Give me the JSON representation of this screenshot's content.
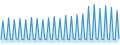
{
  "chart_data": {
    "type": "area",
    "values": [
      8,
      55,
      10,
      8,
      62,
      9,
      8,
      58,
      10,
      8,
      60,
      9,
      8,
      57,
      10,
      8,
      63,
      9,
      8,
      60,
      10,
      8,
      58,
      9,
      8,
      62,
      10,
      8,
      65,
      9,
      8,
      60,
      10,
      8,
      68,
      9,
      8,
      66,
      10,
      8,
      70,
      9,
      8,
      72,
      10,
      8,
      90,
      9,
      8,
      95,
      10,
      8,
      85,
      9,
      8,
      92,
      10,
      8,
      88,
      9,
      8,
      80,
      10
    ],
    "color": "#3a9ad9",
    "ylim": [
      0,
      100
    ],
    "tick_labels": false
  }
}
